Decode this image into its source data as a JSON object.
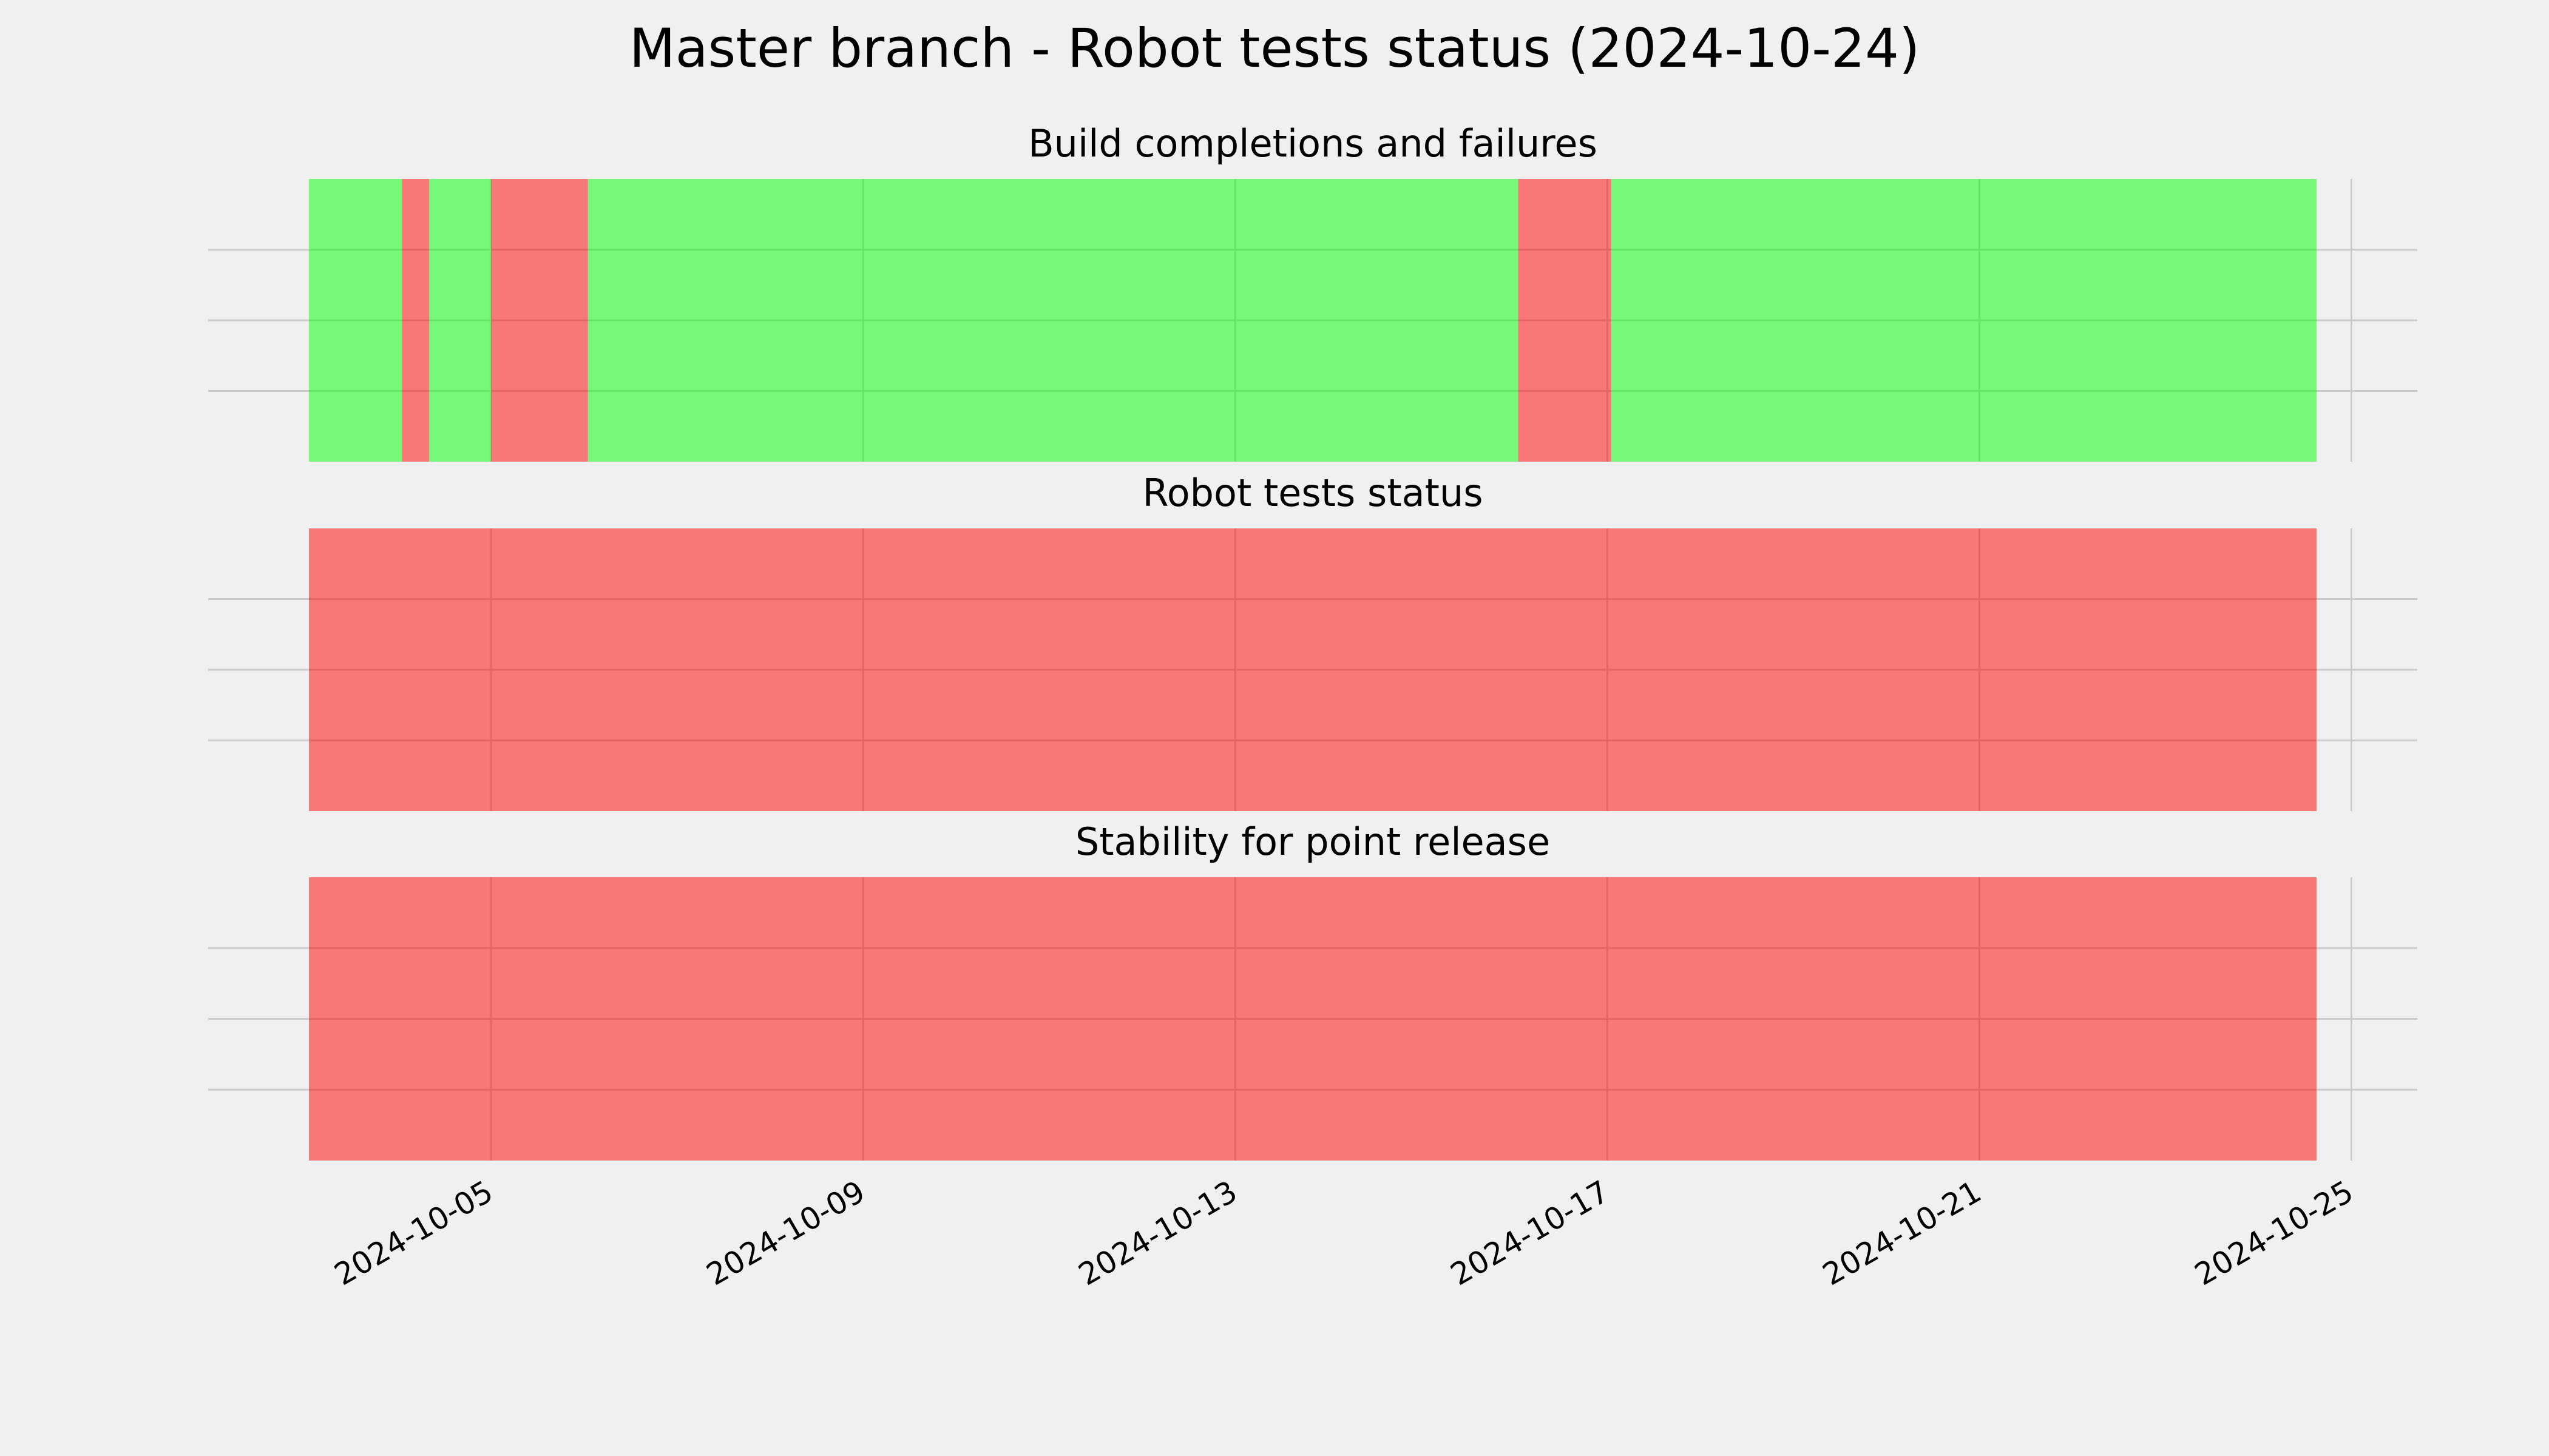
{
  "title": "Master branch - Robot tests status (2024-10-24)",
  "chart_data": [
    {
      "type": "span",
      "title": "Build completions and failures",
      "alpha": 0.5,
      "grid": true,
      "xlim": [
        "2024-10-01T23:00",
        "2024-10-25T17:00"
      ],
      "ylim": [
        0,
        1
      ],
      "xticks": [
        "2024-10-05",
        "2024-10-09",
        "2024-10-13",
        "2024-10-17",
        "2024-10-21",
        "2024-10-25"
      ],
      "yticks": [
        0.25,
        0.5,
        0.75
      ],
      "spans": [
        {
          "start": "2024-10-03T01:00",
          "end": "2024-10-04T01:00",
          "color": "#00ff00"
        },
        {
          "start": "2024-10-04T01:00",
          "end": "2024-10-04T08:00",
          "color": "#ff0000"
        },
        {
          "start": "2024-10-04T08:00",
          "end": "2024-10-05T00:00",
          "color": "#00ff00"
        },
        {
          "start": "2024-10-05T00:00",
          "end": "2024-10-06T01:00",
          "color": "#ff0000"
        },
        {
          "start": "2024-10-06T01:00",
          "end": "2024-10-16T01:00",
          "color": "#00ff00"
        },
        {
          "start": "2024-10-16T01:00",
          "end": "2024-10-17T01:00",
          "color": "#ff0000"
        },
        {
          "start": "2024-10-17T01:00",
          "end": "2024-10-24T15:00",
          "color": "#00ff00"
        }
      ]
    },
    {
      "type": "span",
      "title": "Robot tests status",
      "alpha": 0.5,
      "grid": true,
      "xlim": [
        "2024-10-01T23:00",
        "2024-10-25T17:00"
      ],
      "ylim": [
        0,
        1
      ],
      "xticks": [
        "2024-10-05",
        "2024-10-09",
        "2024-10-13",
        "2024-10-17",
        "2024-10-21",
        "2024-10-25"
      ],
      "yticks": [
        0.25,
        0.5,
        0.75
      ],
      "spans": [
        {
          "start": "2024-10-03T01:00",
          "end": "2024-10-24T15:00",
          "color": "#ff0000"
        }
      ]
    },
    {
      "type": "span",
      "title": "Stability for point release",
      "alpha": 0.5,
      "grid": true,
      "xlim": [
        "2024-10-01T23:00",
        "2024-10-25T17:00"
      ],
      "ylim": [
        0,
        1
      ],
      "xticks": [
        "2024-10-05",
        "2024-10-09",
        "2024-10-13",
        "2024-10-17",
        "2024-10-21",
        "2024-10-25"
      ],
      "yticks": [
        0.25,
        0.5,
        0.75
      ],
      "spans": [
        {
          "start": "2024-10-03T01:00",
          "end": "2024-10-24T15:00",
          "color": "#ff0000"
        }
      ]
    }
  ]
}
